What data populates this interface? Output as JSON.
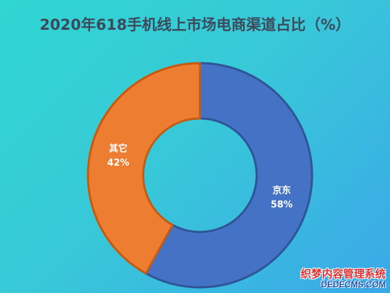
{
  "chart_data": {
    "type": "pie",
    "title": "2020年618手机线上市场电商渠道占比（%）",
    "categories": [
      "京东",
      "其它"
    ],
    "values": [
      58,
      42
    ],
    "labels": [
      "58%",
      "42%"
    ],
    "colors": [
      "#4472c4",
      "#ed7d31"
    ],
    "donut": true
  },
  "watermark": {
    "line1": "织梦内容管理系统",
    "line2": "DEDECMS.COM"
  }
}
